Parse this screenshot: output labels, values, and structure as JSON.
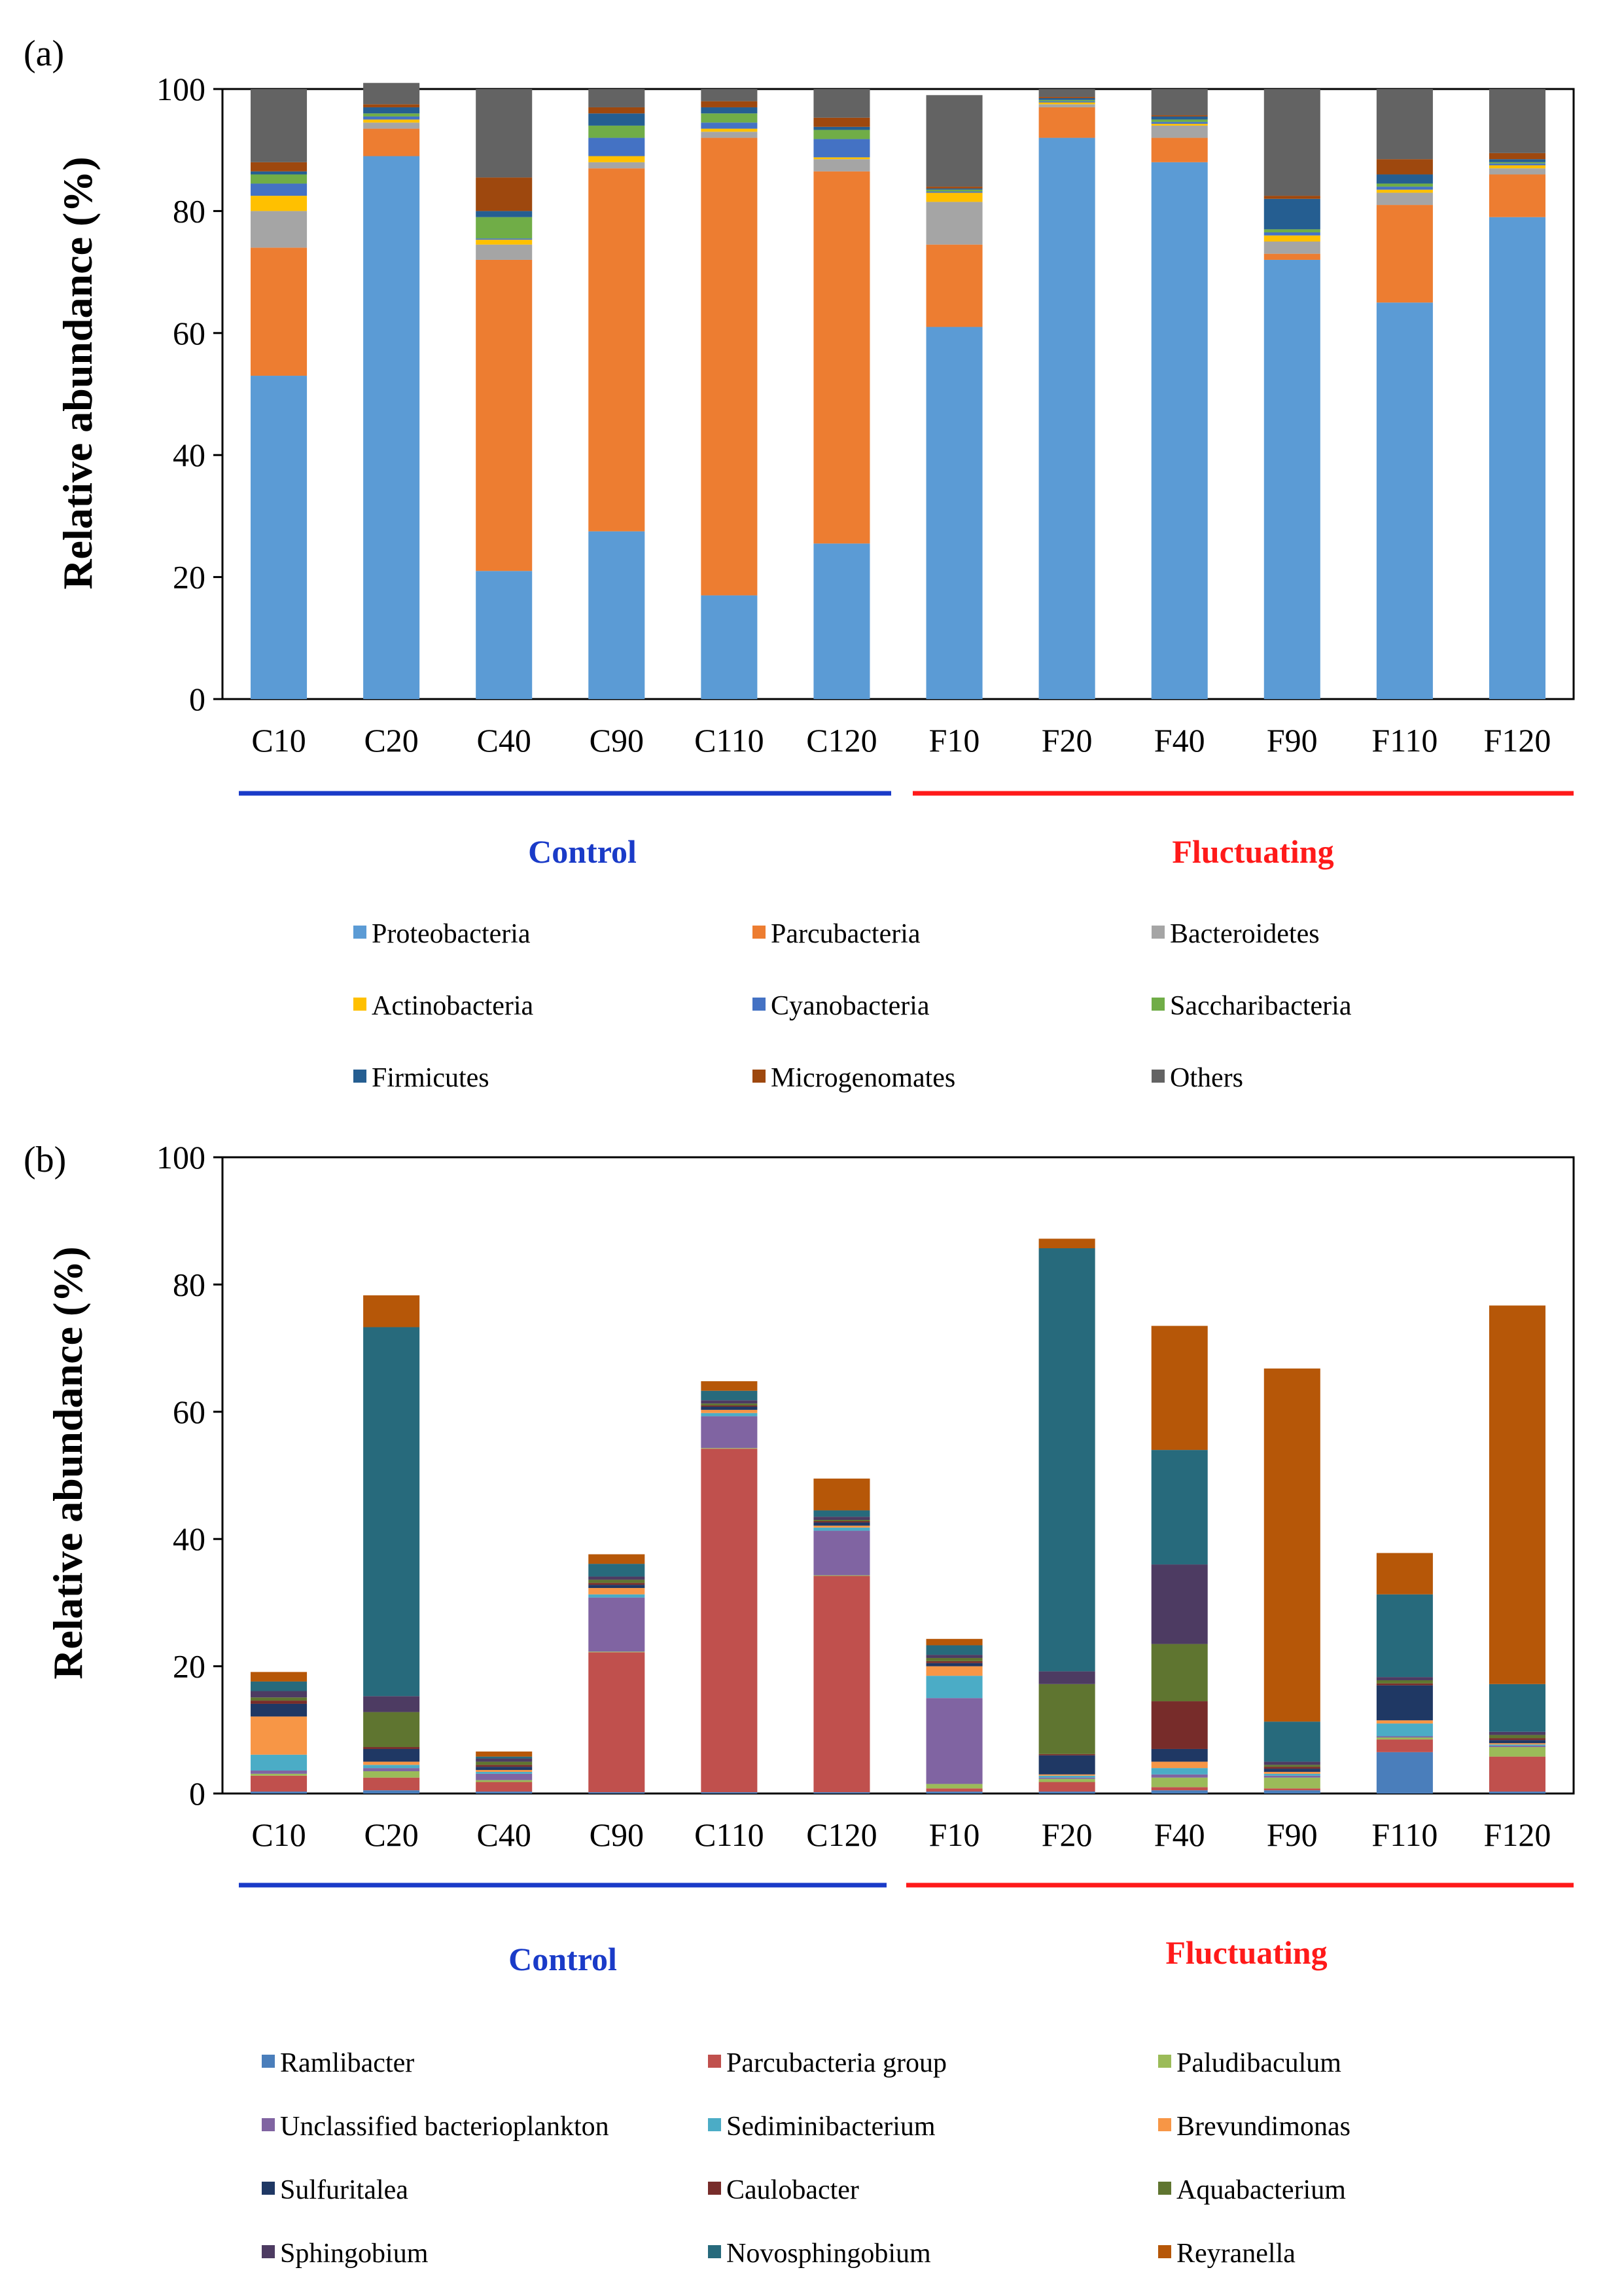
{
  "figure": {
    "panel_a_label": "(a)",
    "panel_b_label": "(b)",
    "group_control": "Control",
    "group_fluctuating": "Fluctuating",
    "control_color": "#1a3bc8",
    "fluctuating_color": "#ff1a1a"
  },
  "chart_data": [
    {
      "panel": "(a)",
      "type": "bar",
      "stacked": true,
      "ylabel": "Relative  abundance (%)",
      "ylim": [
        0,
        100
      ],
      "yticks": [
        0,
        20,
        40,
        60,
        80,
        100
      ],
      "categories": [
        "C10",
        "C20",
        "C40",
        "C90",
        "C110",
        "C120",
        "F10",
        "F20",
        "F40",
        "F90",
        "F110",
        "F120"
      ],
      "legend_position": "bottom",
      "series": [
        {
          "name": "Proteobacteria",
          "color": "#5b9bd5",
          "values": [
            53,
            89,
            21,
            27.5,
            17,
            25.5,
            61,
            92,
            88,
            72,
            65,
            79
          ]
        },
        {
          "name": "Parcubacteria",
          "color": "#ed7d31",
          "values": [
            21,
            4.5,
            51,
            59.5,
            75,
            61,
            13.5,
            5,
            4,
            1,
            16,
            7
          ]
        },
        {
          "name": "Bacteroidetes",
          "color": "#a5a5a5",
          "values": [
            6,
            1,
            2.5,
            1,
            1,
            2,
            7,
            0.5,
            2,
            2,
            2,
            1
          ]
        },
        {
          "name": "Actinobacteria",
          "color": "#ffc000",
          "values": [
            2.5,
            0.5,
            0.8,
            1,
            0.5,
            0.3,
            1.5,
            0.3,
            0.3,
            1,
            0.5,
            0.5
          ]
        },
        {
          "name": "Cyanobacteria",
          "color": "#4472c4",
          "values": [
            2,
            0.5,
            0.2,
            3,
            1,
            3,
            0.2,
            0.2,
            0.3,
            0.5,
            0.5,
            0.3
          ]
        },
        {
          "name": "Saccharibacteria",
          "color": "#70ad47",
          "values": [
            1.5,
            0.5,
            3.5,
            2,
            1.5,
            1.5,
            0.3,
            0.2,
            0.4,
            0.5,
            0.5,
            0.2
          ]
        },
        {
          "name": "Firmicutes",
          "color": "#255e91",
          "values": [
            0.5,
            1,
            1,
            2,
            1,
            0.5,
            0.2,
            0.3,
            0.5,
            5,
            1.5,
            0.5
          ]
        },
        {
          "name": "Microgenomates",
          "color": "#9e480e",
          "values": [
            1.5,
            0.5,
            5.5,
            1,
            1,
            1.5,
            0.3,
            0.2,
            0.2,
            0.5,
            2.5,
            1
          ]
        },
        {
          "name": "Others",
          "color": "#636363",
          "values": [
            12,
            3.5,
            14.5,
            3,
            2,
            4.7,
            15,
            1.3,
            4.3,
            17.5,
            11.5,
            10.5
          ]
        }
      ]
    },
    {
      "panel": "(b)",
      "type": "bar",
      "stacked": true,
      "ylabel": "Relative  abundance (%)",
      "ylim": [
        0,
        100
      ],
      "yticks": [
        0,
        20,
        40,
        60,
        80,
        100
      ],
      "categories": [
        "C10",
        "C20",
        "C40",
        "C90",
        "C110",
        "C120",
        "F10",
        "F20",
        "F40",
        "F90",
        "F110",
        "F120"
      ],
      "legend_position": "bottom",
      "series": [
        {
          "name": "Ramlibacter",
          "color": "#4a7ebb",
          "values": [
            0.3,
            0.5,
            0.3,
            0.2,
            0.2,
            0.2,
            0.3,
            0.3,
            0.5,
            0.5,
            6.5,
            0.3
          ]
        },
        {
          "name": "Parcubacteria group",
          "color": "#c0504d",
          "values": [
            2.5,
            2,
            1.5,
            22,
            54,
            34,
            0.5,
            1.5,
            0.5,
            0.3,
            2,
            5.5
          ]
        },
        {
          "name": "Paludibaculum",
          "color": "#9bbb59",
          "values": [
            0.3,
            1,
            0.3,
            0.1,
            0.1,
            0.1,
            0.7,
            0.5,
            1.5,
            1.7,
            0.3,
            1.5
          ]
        },
        {
          "name": "Unclassified bacterioplankton",
          "color": "#8064a2",
          "values": [
            0.5,
            0.5,
            1,
            8.5,
            5,
            7,
            13.5,
            0.2,
            0.5,
            0.3,
            0.2,
            0.2
          ]
        },
        {
          "name": "Sediminibacterium",
          "color": "#4bacc6",
          "values": [
            2.5,
            0.5,
            0.3,
            0.5,
            0.5,
            0.5,
            3.5,
            0.3,
            1,
            0.3,
            2,
            0.2
          ]
        },
        {
          "name": "Brevundimonas",
          "color": "#f79646",
          "values": [
            6,
            0.5,
            0.3,
            1,
            0.5,
            0.3,
            1.5,
            0.2,
            1,
            0.3,
            0.5,
            0.2
          ]
        },
        {
          "name": "Sulfuritalea",
          "color": "#1f3864",
          "values": [
            2,
            2,
            0.5,
            0.5,
            0.5,
            0.5,
            0.5,
            3,
            2,
            0.5,
            5.5,
            0.5
          ]
        },
        {
          "name": "Caulobacter",
          "color": "#772c2a",
          "values": [
            0.5,
            0.3,
            0.3,
            0.3,
            0.2,
            0.2,
            0.3,
            0.2,
            7.5,
            0.3,
            0.3,
            0.3
          ]
        },
        {
          "name": "Aquabacterium",
          "color": "#5f7530",
          "values": [
            0.5,
            5.5,
            0.5,
            0.5,
            0.3,
            0.2,
            0.5,
            11,
            9,
            0.3,
            0.5,
            0.5
          ]
        },
        {
          "name": "Sphingobium",
          "color": "#4d3b62",
          "values": [
            1,
            2.5,
            0.5,
            0.5,
            0.5,
            0.5,
            0.5,
            2,
            12.5,
            0.5,
            0.5,
            0.5
          ]
        },
        {
          "name": "Novosphingobium",
          "color": "#276a7c",
          "values": [
            1.5,
            58,
            0.3,
            2,
            1.5,
            1,
            1.5,
            66.5,
            18,
            6.3,
            13,
            7.5
          ]
        },
        {
          "name": "Reyranella",
          "color": "#b65708",
          "values": [
            1.5,
            5,
            0.8,
            1.5,
            1.5,
            5,
            1,
            1.5,
            19.5,
            55.5,
            6.5,
            59.5
          ]
        }
      ]
    }
  ]
}
